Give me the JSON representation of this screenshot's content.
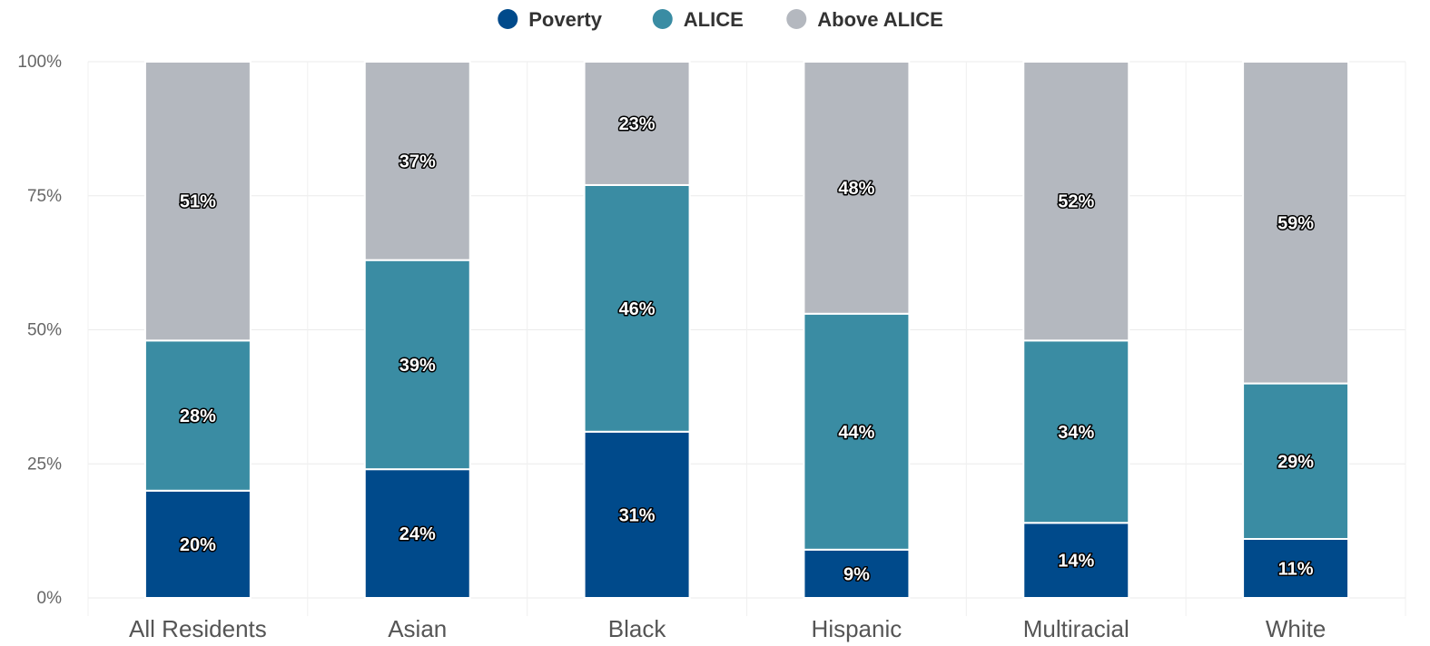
{
  "chart_data": {
    "type": "bar",
    "stacked": true,
    "orientation": "vertical",
    "categories": [
      "All Residents",
      "Asian",
      "Black",
      "Hispanic",
      "Multiracial",
      "White"
    ],
    "series": [
      {
        "name": "Poverty",
        "color": "#004a8b",
        "values": [
          20,
          24,
          31,
          9,
          14,
          11
        ],
        "labels": [
          "20%",
          "24%",
          "31%",
          "9%",
          "14%",
          "11%"
        ]
      },
      {
        "name": "ALICE",
        "color": "#3a8ca3",
        "values": [
          28,
          39,
          46,
          44,
          34,
          29
        ],
        "labels": [
          "28%",
          "39%",
          "46%",
          "44%",
          "34%",
          "29%"
        ]
      },
      {
        "name": "Above ALICE",
        "color": "#b4b8bf",
        "values": [
          51,
          37,
          23,
          48,
          52,
          59
        ],
        "labels": [
          "51%",
          "37%",
          "23%",
          "48%",
          "52%",
          "59%"
        ]
      }
    ],
    "y_ticks": [
      "0%",
      "25%",
      "50%",
      "75%",
      "100%"
    ],
    "ylim": [
      0,
      100
    ],
    "grid": true,
    "legend_position": "top-center"
  }
}
